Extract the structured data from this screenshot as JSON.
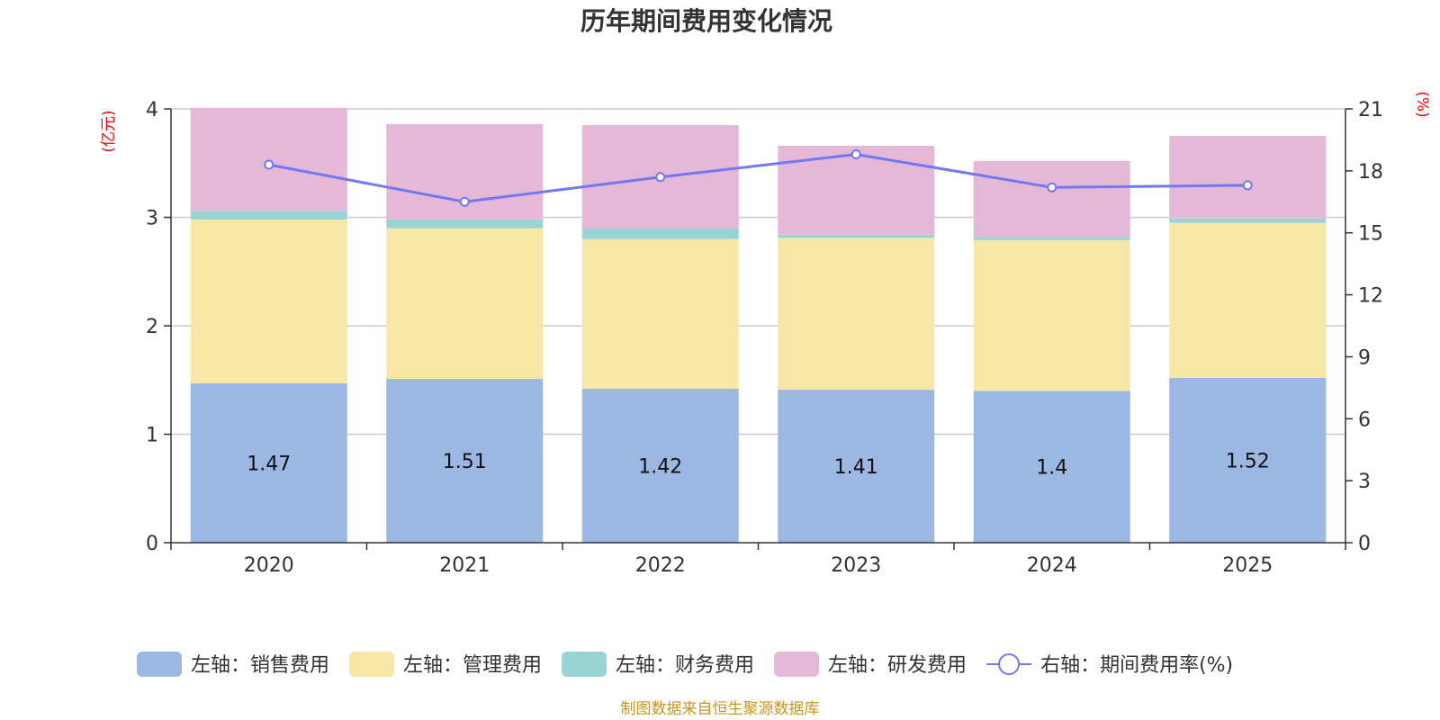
{
  "chart_data": {
    "type": "bar",
    "stacked": true,
    "title": "历年期间费用变化情况",
    "categories": [
      "2020",
      "2021",
      "2022",
      "2023",
      "2024",
      "2025"
    ],
    "left_axis": {
      "unit_label": "(亿元)",
      "ylim": [
        0,
        4
      ],
      "ticks": [
        "0",
        "1",
        "2",
        "3",
        "4"
      ]
    },
    "right_axis": {
      "unit_label": "(%)",
      "ylim": [
        0,
        21
      ],
      "ticks": [
        "0",
        "3",
        "6",
        "9",
        "12",
        "15",
        "18",
        "21"
      ]
    },
    "series": [
      {
        "name": "左轴：销售费用",
        "axis": "left",
        "type": "bar",
        "color": "#9bb8e2",
        "values": [
          1.47,
          1.51,
          1.42,
          1.41,
          1.4,
          1.52
        ],
        "labels": [
          "1.47",
          "1.51",
          "1.42",
          "1.41",
          "1.4",
          "1.52"
        ]
      },
      {
        "name": "左轴：管理费用",
        "axis": "left",
        "type": "bar",
        "color": "#f7e7a6",
        "values": [
          1.51,
          1.39,
          1.38,
          1.4,
          1.39,
          1.43
        ]
      },
      {
        "name": "左轴：财务费用",
        "axis": "left",
        "type": "bar",
        "color": "#98d4d4",
        "values": [
          0.08,
          0.08,
          0.1,
          0.03,
          0.03,
          0.04
        ]
      },
      {
        "name": "左轴：研发费用",
        "axis": "left",
        "type": "bar",
        "color": "#e6b8d8",
        "values": [
          0.95,
          0.88,
          0.95,
          0.82,
          0.7,
          0.76
        ]
      },
      {
        "name": "右轴：期间费用率(%)",
        "axis": "right",
        "type": "line",
        "color": "#7079f0",
        "values": [
          18.3,
          16.5,
          17.7,
          18.8,
          17.2,
          17.3
        ]
      }
    ],
    "source": "制图数据来自恒生聚源数据库"
  }
}
